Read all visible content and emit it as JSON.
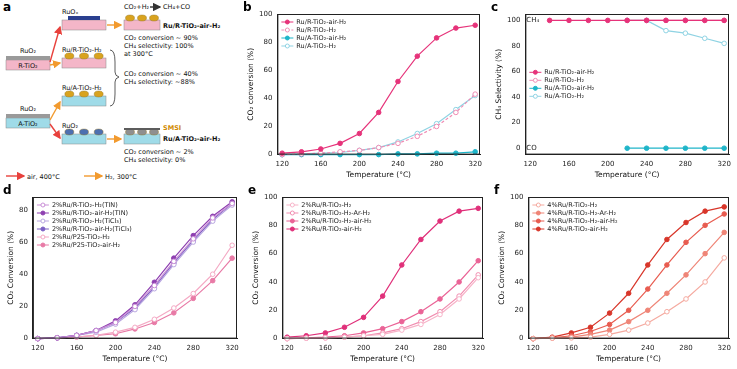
{
  "diagram": {
    "panel_label": "a",
    "precursor": "RuO₂",
    "supports": [
      "R-TiO₂",
      "A-TiO₂"
    ],
    "intermediates": [
      "RuOₓ",
      "Ru/R-TiO₂-H₂",
      "Ru/A-TiO₂-H₂",
      "RuO₂"
    ],
    "reactants": "CO₂+H₂",
    "products": "CH₄+CO",
    "outcomes": [
      {
        "name": "Ru/R-TiO₂-air-H₂",
        "lines": [
          "CO₂ conversion ~ 90%",
          "CH₄ selectivity: 100%",
          "at 300°C"
        ]
      },
      {
        "lines": [
          "CO₂ conversion ~ 40%",
          "CH₄ selectivity: ~88%"
        ]
      },
      {
        "name": "Ru/A-TiO₂-air-H₂",
        "tag": "SMSI",
        "lines": [
          "CO₂ conversion ~ 2%",
          "CH₄ selectivity: 0%"
        ]
      }
    ],
    "legend": [
      {
        "label": "air, 400°C",
        "color": "#e8413c"
      },
      {
        "label": "H₂, 300°C",
        "color": "#f29a2e"
      }
    ]
  },
  "chart_data": [
    {
      "panel_label": "b",
      "type": "line",
      "x_label": "Temperature (°C)",
      "y_label": "CO₂ conversion (%)",
      "x": [
        120,
        140,
        160,
        180,
        200,
        220,
        240,
        260,
        280,
        300,
        320
      ],
      "xlim": [
        115,
        325
      ],
      "xticks": [
        120,
        160,
        200,
        240,
        280,
        320
      ],
      "ylim": [
        0,
        100
      ],
      "yticks": [
        0,
        20,
        40,
        60,
        80,
        100
      ],
      "grid": false,
      "legend": "upper left",
      "series": [
        {
          "name": "Ru/R-TiO₂-air-H₂",
          "color": "#e6337a",
          "marker": "circle",
          "line_style": "solid",
          "values": [
            1,
            2,
            4,
            8,
            15,
            30,
            52,
            70,
            83,
            90,
            92
          ]
        },
        {
          "name": "Ru/R-TiO₂-H₂",
          "color": "#f08cb4",
          "marker": "open_circle",
          "line_style": "dashed",
          "values": [
            0,
            0.5,
            1,
            2,
            3,
            5,
            8,
            13,
            20,
            30,
            43
          ]
        },
        {
          "name": "Ru/A-TiO₂-air-H₂",
          "color": "#1fb5c9",
          "marker": "circle",
          "line_style": "solid",
          "values": [
            0,
            0,
            0,
            0,
            0,
            0,
            0.5,
            0.5,
            1,
            1,
            2
          ]
        },
        {
          "name": "Ru/A-TiO₂-H₂",
          "color": "#8fd3e3",
          "marker": "open_circle",
          "line_style": "solid",
          "values": [
            0,
            0.5,
            1,
            1.5,
            3,
            5,
            9,
            15,
            22,
            32,
            42
          ]
        }
      ]
    },
    {
      "panel_label": "c",
      "type": "line",
      "x_label": "Temperature (°C)",
      "y_label": "CH₄ Selectivity (%)",
      "x": [
        120,
        140,
        160,
        180,
        200,
        220,
        240,
        260,
        280,
        300,
        320
      ],
      "xlim": [
        115,
        325
      ],
      "xticks": [
        120,
        160,
        200,
        240,
        280,
        320
      ],
      "ylim": [
        -5,
        105
      ],
      "yticks": [
        0,
        20,
        40,
        60,
        80,
        100
      ],
      "grid": false,
      "legend": "center left",
      "annotations": [
        {
          "text": "CH₄",
          "x": 116,
          "y": 100
        },
        {
          "text": "CO",
          "x": 116,
          "y": 0
        }
      ],
      "series": [
        {
          "name": "Ru/R-TiO₂-air-H₂",
          "color": "#e6337a",
          "marker": "circle",
          "line_style": "solid",
          "values": [
            null,
            100,
            100,
            100,
            100,
            100,
            100,
            100,
            100,
            100,
            100
          ]
        },
        {
          "name": "Ru/R-TiO₂-H₂",
          "color": "#f08cb4",
          "marker": "open_circle",
          "line_style": "solid",
          "values": [
            null,
            null,
            null,
            null,
            null,
            100,
            100,
            100,
            100,
            100,
            100
          ]
        },
        {
          "name": "Ru/A-TiO₂-air-H₂",
          "color": "#1fb5c9",
          "marker": "circle",
          "line_style": "solid",
          "values": [
            null,
            null,
            null,
            null,
            null,
            0,
            0,
            0,
            0,
            0,
            0
          ]
        },
        {
          "name": "Ru/A-TiO₂-H₂",
          "color": "#8fd3e3",
          "marker": "open_circle",
          "line_style": "solid",
          "values": [
            null,
            null,
            null,
            null,
            null,
            100,
            100,
            92,
            90,
            86,
            82
          ]
        }
      ]
    },
    {
      "panel_label": "d",
      "type": "line",
      "x_label": "Temperature (°C)",
      "y_label": "CO₂ Conversion (%)",
      "x": [
        120,
        140,
        160,
        180,
        200,
        220,
        240,
        260,
        280,
        300,
        320
      ],
      "xlim": [
        115,
        325
      ],
      "xticks": [
        120,
        160,
        200,
        240,
        280,
        320
      ],
      "ylim": [
        0,
        88
      ],
      "yticks": [
        0,
        20,
        40,
        60,
        80
      ],
      "grid": false,
      "legend": "upper left",
      "series": [
        {
          "name": "2%Ru/R-TiO₂-H₂(TIN)",
          "color": "#c98fd6",
          "marker": "open_circle",
          "line_style": "solid",
          "values": [
            0,
            0.5,
            2,
            5,
            10,
            20,
            33,
            48,
            62,
            75,
            84
          ]
        },
        {
          "name": "2%Ru/R-TiO₂-air-H₂(TIN)",
          "color": "#8e3fb0",
          "marker": "circle",
          "line_style": "solid",
          "values": [
            0,
            0.5,
            2,
            5,
            11,
            21,
            35,
            50,
            64,
            76,
            85
          ]
        },
        {
          "name": "2%Ru/R-TiO₂-H₂(TiCl₃)",
          "color": "#b9a6e0",
          "marker": "open_circle",
          "line_style": "solid",
          "values": [
            0,
            0.5,
            2,
            4,
            9,
            18,
            31,
            46,
            60,
            73,
            83
          ]
        },
        {
          "name": "2%Ru/R-TiO₂-air-H₂(TiCl₃)",
          "color": "#7b5fc4",
          "marker": "circle",
          "line_style": "solid",
          "values": [
            0,
            0.5,
            2,
            5,
            10,
            19,
            32,
            47,
            61,
            74,
            84
          ]
        },
        {
          "name": "2%Ru/P25-TiO₂-H₂",
          "color": "#f4a9c4",
          "marker": "open_circle",
          "line_style": "solid",
          "values": [
            0,
            0.5,
            1,
            2,
            4,
            7,
            12,
            19,
            28,
            40,
            58
          ]
        },
        {
          "name": "2%Ru/P25-TiO₂-air-H₂",
          "color": "#e87aa6",
          "marker": "circle",
          "line_style": "solid",
          "values": [
            0,
            0.5,
            1,
            2,
            3,
            6,
            10,
            16,
            25,
            36,
            50
          ]
        }
      ]
    },
    {
      "panel_label": "e",
      "type": "line",
      "x_label": "Temperature (°C)",
      "y_label": "CO₂ Conversion (%)",
      "x": [
        120,
        140,
        160,
        180,
        200,
        220,
        240,
        260,
        280,
        300,
        320
      ],
      "xlim": [
        115,
        325
      ],
      "xticks": [
        120,
        160,
        200,
        240,
        280,
        320
      ],
      "ylim": [
        0,
        100
      ],
      "yticks": [
        0,
        20,
        40,
        60,
        80,
        100
      ],
      "grid": false,
      "legend": "upper left",
      "series": [
        {
          "name": "2%Ru/R-TiO₂-H₂",
          "color": "#f7b3c8",
          "marker": "open_circle",
          "line_style": "solid",
          "values": [
            0,
            0.3,
            0.5,
            1,
            2,
            3,
            6,
            10,
            17,
            28,
            43
          ]
        },
        {
          "name": "2%Ru/R-TiO₂-H₂-Ar-H₂",
          "color": "#f18db0",
          "marker": "open_circle",
          "line_style": "solid",
          "values": [
            0,
            0.3,
            0.5,
            1,
            2,
            4,
            7,
            12,
            19,
            30,
            45
          ]
        },
        {
          "name": "2%Ru/R-TiO₂-H₂-air-H₂",
          "color": "#ea6396",
          "marker": "circle",
          "line_style": "solid",
          "values": [
            0,
            0.5,
            1,
            2,
            4,
            7,
            12,
            19,
            28,
            40,
            55
          ]
        },
        {
          "name": "2%Ru/R-TiO₂-air-H₂",
          "color": "#e0307a",
          "marker": "circle",
          "line_style": "solid",
          "values": [
            1,
            2,
            4,
            8,
            15,
            30,
            52,
            70,
            83,
            90,
            92
          ]
        }
      ]
    },
    {
      "panel_label": "f",
      "type": "line",
      "x_label": "Temperature (°C)",
      "y_label": "CO₂ Conversion (%)",
      "x": [
        120,
        140,
        160,
        180,
        200,
        220,
        240,
        260,
        280,
        300,
        320
      ],
      "xlim": [
        115,
        325
      ],
      "xticks": [
        120,
        160,
        200,
        240,
        280,
        320
      ],
      "ylim": [
        0,
        100
      ],
      "yticks": [
        0,
        20,
        40,
        60,
        80,
        100
      ],
      "grid": false,
      "legend": "upper left",
      "series": [
        {
          "name": "4%Ru/R-TiO₂-H₂",
          "color": "#f5aaa0",
          "marker": "open_circle",
          "line_style": "solid",
          "values": [
            0,
            0.3,
            0.5,
            1,
            3,
            6,
            11,
            19,
            28,
            40,
            57
          ]
        },
        {
          "name": "4%Ru/R-TiO₂-H₂-Ar-H₂",
          "color": "#ef8577",
          "marker": "circle",
          "line_style": "solid",
          "values": [
            0,
            0.5,
            1,
            3,
            6,
            12,
            20,
            32,
            45,
            60,
            75
          ]
        },
        {
          "name": "4%Ru/R-TiO₂-H₂-air-H₂",
          "color": "#e85c50",
          "marker": "circle",
          "line_style": "solid",
          "values": [
            0,
            0.5,
            2,
            5,
            10,
            20,
            35,
            52,
            68,
            80,
            88
          ]
        },
        {
          "name": "4%Ru/R-TiO₂-air-H₂",
          "color": "#d8362a",
          "marker": "circle",
          "line_style": "solid",
          "values": [
            0,
            1,
            4,
            8,
            18,
            32,
            52,
            70,
            82,
            90,
            93
          ]
        }
      ]
    }
  ]
}
